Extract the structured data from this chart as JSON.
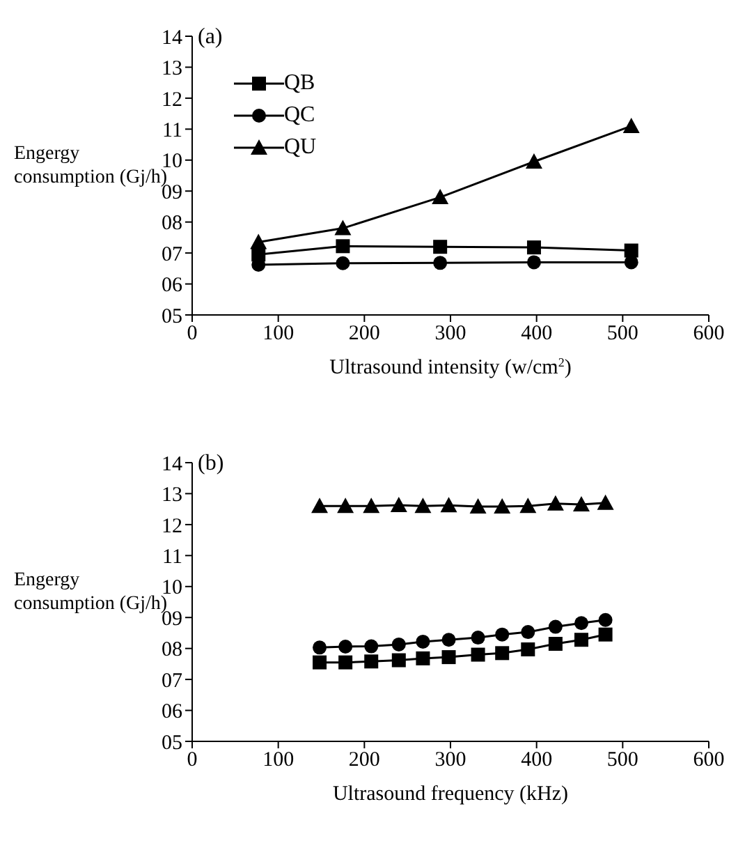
{
  "chart_data": [
    {
      "type": "line",
      "annotations": [
        "(a)"
      ],
      "xlabel": "Ultrasound intensity (w/cm$^{2}$)",
      "ylabel": "Engergy consumption (Gj/h)",
      "x": [
        77,
        175,
        288,
        397,
        510
      ],
      "series": [
        {
          "name": "QB",
          "color": "#000000",
          "marker": "square",
          "values": [
            6.95,
            7.22,
            7.2,
            7.18,
            7.08
          ]
        },
        {
          "name": "QC",
          "color": "#000000",
          "marker": "circle",
          "values": [
            6.62,
            6.67,
            6.68,
            6.7,
            6.7
          ]
        },
        {
          "name": "QU",
          "color": "#000000",
          "marker": "triangle",
          "values": [
            7.35,
            7.8,
            8.8,
            9.95,
            11.1
          ]
        }
      ],
      "xlim": [
        0,
        600
      ],
      "xticks": [
        0,
        100,
        200,
        300,
        400,
        500,
        600
      ],
      "ylim": [
        5,
        14
      ],
      "yticks": [
        {
          "value": 5,
          "label": "05"
        },
        {
          "value": 6,
          "label": "06"
        },
        {
          "value": 7,
          "label": "07"
        },
        {
          "value": 8,
          "label": "08"
        },
        {
          "value": 9,
          "label": "09"
        },
        10,
        11,
        12,
        13,
        14
      ],
      "grid": false,
      "legend": "top left"
    },
    {
      "type": "line",
      "annotations": [
        "(b)"
      ],
      "xlabel": "Ultrasound frequency (kHz)",
      "ylabel": "Engergy consumption (Gj/h)",
      "x": [
        148,
        178,
        208,
        240,
        268,
        298,
        332,
        360,
        390,
        422,
        452,
        480
      ],
      "series": [
        {
          "color": "#000000",
          "marker": "square",
          "values": [
            7.55,
            7.55,
            7.58,
            7.62,
            7.68,
            7.72,
            7.8,
            7.85,
            7.97,
            8.15,
            8.28,
            8.45
          ]
        },
        {
          "color": "#000000",
          "marker": "circle",
          "values": [
            8.03,
            8.06,
            8.07,
            8.13,
            8.22,
            8.28,
            8.35,
            8.45,
            8.53,
            8.7,
            8.82,
            8.92
          ]
        },
        {
          "color": "#000000",
          "marker": "triangle",
          "values": [
            12.6,
            12.6,
            12.6,
            12.63,
            12.6,
            12.62,
            12.58,
            12.58,
            12.6,
            12.68,
            12.65,
            12.7
          ]
        }
      ],
      "xlim": [
        0,
        600
      ],
      "xticks": [
        0,
        100,
        200,
        300,
        400,
        500,
        600
      ],
      "ylim": [
        5,
        14
      ],
      "yticks": [
        {
          "value": 5,
          "label": "05"
        },
        {
          "value": 6,
          "label": "06"
        },
        {
          "value": 7,
          "label": "07"
        },
        {
          "value": 8,
          "label": "08"
        },
        {
          "value": 9,
          "label": "09"
        },
        10,
        11,
        12,
        13,
        14
      ],
      "grid": false,
      "legend": false
    }
  ]
}
